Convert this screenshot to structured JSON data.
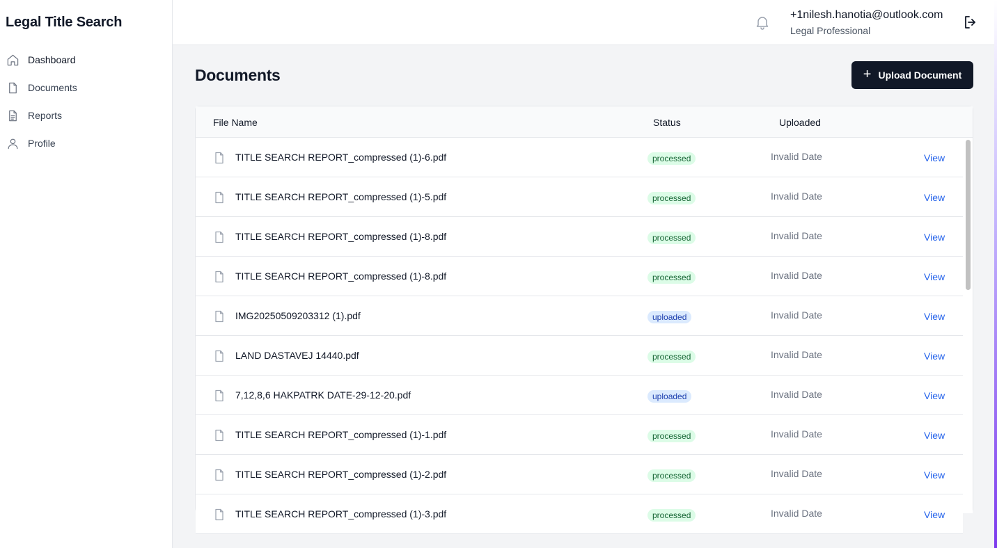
{
  "app": {
    "title": "Legal Title Search"
  },
  "sidebar": {
    "items": [
      {
        "label": "Dashboard",
        "icon": "home-icon",
        "active": true
      },
      {
        "label": "Documents",
        "icon": "document-icon",
        "active": false
      },
      {
        "label": "Reports",
        "icon": "report-icon",
        "active": false
      },
      {
        "label": "Profile",
        "icon": "user-icon",
        "active": false
      }
    ]
  },
  "header": {
    "user_email": "+1nilesh.hanotia@outlook.com",
    "user_role": "Legal Professional",
    "icons": [
      "bell-icon",
      "logout-icon"
    ]
  },
  "main": {
    "page_title": "Documents",
    "upload_button": {
      "plus": "+",
      "label": "Upload Document"
    },
    "table": {
      "columns": [
        "File Name",
        "Status",
        "Uploaded"
      ],
      "rows": [
        {
          "name": "TITLE SEARCH REPORT_compressed (1)-6.pdf",
          "status": "processed",
          "uploaded": "Invalid Date",
          "action": "View"
        },
        {
          "name": "TITLE SEARCH REPORT_compressed (1)-5.pdf",
          "status": "processed",
          "uploaded": "Invalid Date",
          "action": "View"
        },
        {
          "name": "TITLE SEARCH REPORT_compressed (1)-8.pdf",
          "status": "processed",
          "uploaded": "Invalid Date",
          "action": "View"
        },
        {
          "name": "TITLE SEARCH REPORT_compressed (1)-8.pdf",
          "status": "processed",
          "uploaded": "Invalid Date",
          "action": "View"
        },
        {
          "name": "IMG20250509203312 (1).pdf",
          "status": "uploaded",
          "uploaded": "Invalid Date",
          "action": "View"
        },
        {
          "name": "LAND DASTAVEJ 14440.pdf",
          "status": "processed",
          "uploaded": "Invalid Date",
          "action": "View"
        },
        {
          "name": "7,12,8,6 HAKPATRK DATE-29-12-20.pdf",
          "status": "uploaded",
          "uploaded": "Invalid Date",
          "action": "View"
        },
        {
          "name": "TITLE SEARCH REPORT_compressed (1)-1.pdf",
          "status": "processed",
          "uploaded": "Invalid Date",
          "action": "View"
        },
        {
          "name": "TITLE SEARCH REPORT_compressed (1)-2.pdf",
          "status": "processed",
          "uploaded": "Invalid Date",
          "action": "View"
        },
        {
          "name": "TITLE SEARCH REPORT_compressed (1)-3.pdf",
          "status": "processed",
          "uploaded": "Invalid Date",
          "action": "View"
        }
      ]
    }
  },
  "colors": {
    "primary_button": "#111827",
    "link": "#2563eb",
    "processed_bg": "#dcfce7",
    "processed_text": "#166534",
    "uploaded_bg": "#dbeafe",
    "uploaded_text": "#1e40af"
  }
}
